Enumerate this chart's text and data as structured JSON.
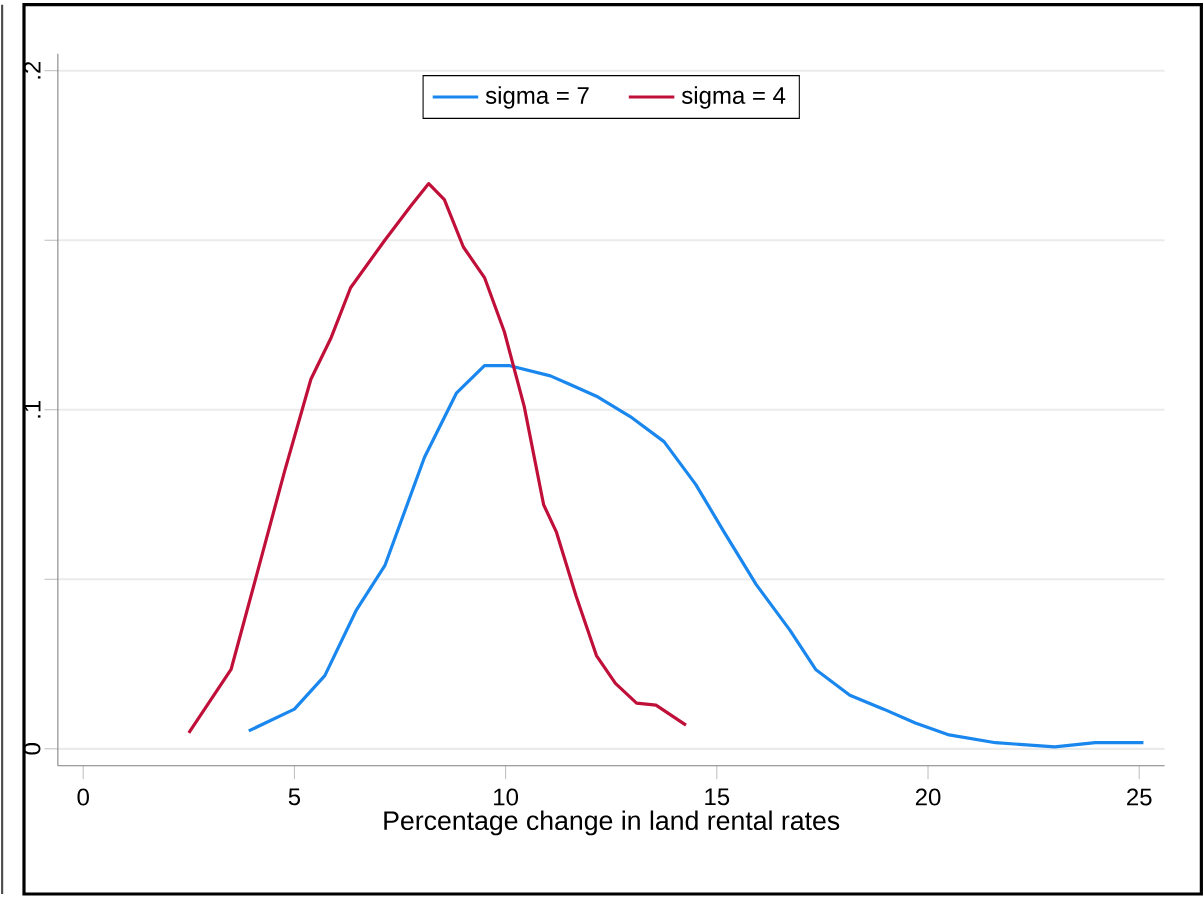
{
  "chart_data": {
    "type": "line",
    "xlabel": "Percentage change in land rental rates",
    "xlim": [
      -0.6,
      25.6
    ],
    "ylim": [
      -0.005,
      0.205
    ],
    "xticks": [
      0,
      5,
      10,
      15,
      20,
      25
    ],
    "yticks": [
      {
        "value": 0,
        "label": "0"
      },
      {
        "value": 0.05,
        "label": null
      },
      {
        "value": 0.1,
        "label": ".1"
      },
      {
        "value": 0.15,
        "label": null
      },
      {
        "value": 0.2,
        "label": ".2"
      }
    ],
    "grid": "y",
    "legend": "top",
    "marker": "none",
    "line_style": "solid",
    "series": [
      {
        "name": "sigma = 7",
        "color": "#1a87ee",
        "x": [
          3.92,
          5.0,
          5.72,
          6.47,
          7.14,
          8.08,
          8.84,
          9.5,
          10.1,
          11.06,
          11.5,
          12.15,
          12.95,
          13.75,
          14.5,
          15.17,
          15.93,
          16.73,
          17.34,
          18.15,
          18.95,
          19.7,
          20.5,
          21.6,
          23.0,
          23.96,
          25.1
        ],
        "values": [
          0.0053,
          0.0117,
          0.0216,
          0.041,
          0.054,
          0.086,
          0.105,
          0.113,
          0.113,
          0.11,
          0.1076,
          0.104,
          0.098,
          0.0906,
          0.078,
          0.064,
          0.0485,
          0.035,
          0.0234,
          0.0158,
          0.0117,
          0.0076,
          0.0041,
          0.0018,
          0.0006,
          0.0018,
          0.0018
        ]
      },
      {
        "name": "sigma = 4",
        "color": "#c0103a",
        "x": [
          2.5,
          3.5,
          4.1,
          4.77,
          5.39,
          5.86,
          6.33,
          7.14,
          7.75,
          8.18,
          8.55,
          9.0,
          9.5,
          9.97,
          10.44,
          10.9,
          11.2,
          11.67,
          12.15,
          12.6,
          13.1,
          13.56,
          14.27
        ],
        "values": [
          0.0047,
          0.0234,
          0.051,
          0.082,
          0.109,
          0.121,
          0.136,
          0.15,
          0.16,
          0.1667,
          0.162,
          0.148,
          0.139,
          0.123,
          0.101,
          0.072,
          0.064,
          0.045,
          0.0275,
          0.0193,
          0.0135,
          0.0129,
          0.007
        ]
      }
    ]
  }
}
